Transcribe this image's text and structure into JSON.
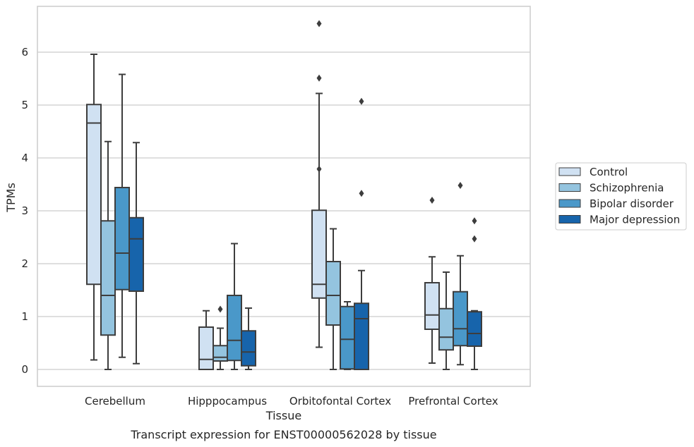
{
  "chart_data": {
    "type": "box",
    "xlabel": "Tissue",
    "ylabel": "TPMs",
    "caption": "Transcript expression for ENST00000562028 by tissue",
    "ylim": [
      -0.32,
      6.88
    ],
    "yticks": [
      0,
      1,
      2,
      3,
      4,
      5,
      6
    ],
    "grid": "horizontal",
    "legend_position": "right",
    "categories": [
      "Cerebellum",
      "Hipppocampus",
      "Orbitofontal Cortex",
      "Prefrontal Cortex"
    ],
    "series": [
      {
        "name": "Control",
        "color": "#d0e1f2",
        "boxes": [
          {
            "whisker_low": 0.18,
            "q1": 1.61,
            "median": 4.66,
            "q3": 5.01,
            "whisker_high": 5.96,
            "outliers": []
          },
          {
            "whisker_low": 0.0,
            "q1": 0.0,
            "median": 0.19,
            "q3": 0.8,
            "whisker_high": 1.11,
            "outliers": []
          },
          {
            "whisker_low": 0.42,
            "q1": 1.35,
            "median": 1.61,
            "q3": 3.01,
            "whisker_high": 5.22,
            "outliers": [
              3.79,
              5.51,
              6.54
            ]
          },
          {
            "whisker_low": 0.12,
            "q1": 0.76,
            "median": 1.03,
            "q3": 1.64,
            "whisker_high": 2.13,
            "outliers": [
              3.2
            ]
          }
        ]
      },
      {
        "name": "Schizophrenia",
        "color": "#94c4df",
        "boxes": [
          {
            "whisker_low": 0.0,
            "q1": 0.65,
            "median": 1.4,
            "q3": 2.81,
            "whisker_high": 4.31,
            "outliers": []
          },
          {
            "whisker_low": 0.0,
            "q1": 0.16,
            "median": 0.23,
            "q3": 0.45,
            "whisker_high": 0.78,
            "outliers": [
              1.14
            ]
          },
          {
            "whisker_low": 0.0,
            "q1": 0.84,
            "median": 1.4,
            "q3": 2.04,
            "whisker_high": 2.66,
            "outliers": []
          },
          {
            "whisker_low": 0.0,
            "q1": 0.37,
            "median": 0.61,
            "q3": 1.15,
            "whisker_high": 1.84,
            "outliers": []
          }
        ]
      },
      {
        "name": "Bipolar disorder",
        "color": "#4a98c9",
        "boxes": [
          {
            "whisker_low": 0.23,
            "q1": 1.51,
            "median": 2.2,
            "q3": 3.44,
            "whisker_high": 5.58,
            "outliers": []
          },
          {
            "whisker_low": 0.0,
            "q1": 0.17,
            "median": 0.55,
            "q3": 1.4,
            "whisker_high": 2.38,
            "outliers": []
          },
          {
            "whisker_low": 0.0,
            "q1": 0.01,
            "median": 0.57,
            "q3": 1.19,
            "whisker_high": 1.28,
            "outliers": []
          },
          {
            "whisker_low": 0.09,
            "q1": 0.45,
            "median": 0.77,
            "q3": 1.47,
            "whisker_high": 2.15,
            "outliers": [
              3.48
            ]
          }
        ]
      },
      {
        "name": "Major depression",
        "color": "#1764ab",
        "boxes": [
          {
            "whisker_low": 0.11,
            "q1": 1.48,
            "median": 2.47,
            "q3": 2.87,
            "whisker_high": 4.29,
            "outliers": []
          },
          {
            "whisker_low": 0.0,
            "q1": 0.07,
            "median": 0.33,
            "q3": 0.73,
            "whisker_high": 1.16,
            "outliers": []
          },
          {
            "whisker_low": 0.0,
            "q1": 0.0,
            "median": 0.96,
            "q3": 1.25,
            "whisker_high": 1.87,
            "outliers": [
              3.33,
              5.07
            ]
          },
          {
            "whisker_low": 0.0,
            "q1": 0.44,
            "median": 0.68,
            "q3": 1.09,
            "whisker_high": 1.11,
            "outliers": [
              2.47,
              2.81
            ]
          }
        ]
      }
    ]
  }
}
